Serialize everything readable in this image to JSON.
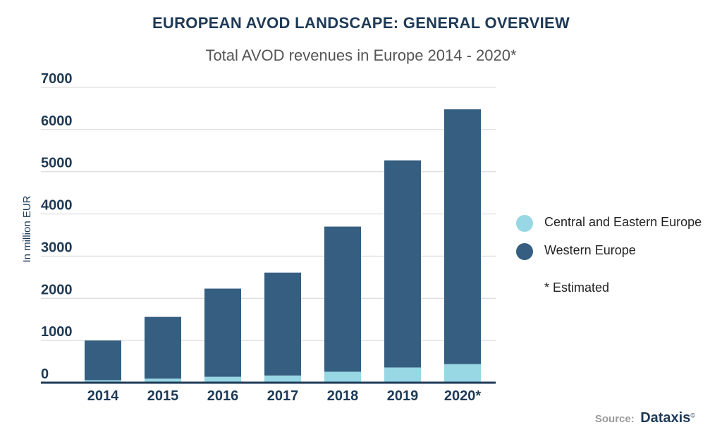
{
  "header": {
    "title": "EUROPEAN AVOD LANDSCAPE: GENERAL OVERVIEW",
    "subtitle": "Total AVOD revenues in Europe 2014 - 2020*"
  },
  "legend": {
    "items": [
      {
        "label": "Central and Eastern Europe",
        "color": "#98d7e4"
      },
      {
        "label": "Western Europe",
        "color": "#355e80"
      }
    ]
  },
  "note": "* Estimated",
  "source": {
    "label": "Source:",
    "brand": "Dataxis",
    "mark": "©"
  },
  "chart_data": {
    "type": "bar",
    "stacked": true,
    "title": "Total AVOD revenues in Europe 2014 - 2020*",
    "ylabel": "In million EUR",
    "xlabel": "",
    "categories": [
      "2014",
      "2015",
      "2016",
      "2017",
      "2018",
      "2019",
      "2020*"
    ],
    "series": [
      {
        "name": "Central and Eastern Europe",
        "color": "#98d7e4",
        "values": [
          60,
          95,
          140,
          170,
          260,
          360,
          440
        ]
      },
      {
        "name": "Western Europe",
        "color": "#355e80",
        "values": [
          940,
          1465,
          2090,
          2440,
          3440,
          4910,
          6040
        ]
      }
    ],
    "ylim": [
      0,
      7000
    ],
    "yticks": [
      "0",
      "1000",
      "2000",
      "3000",
      "4000",
      "5000",
      "6000",
      "7000"
    ],
    "grid": true,
    "legend_position": "right"
  }
}
